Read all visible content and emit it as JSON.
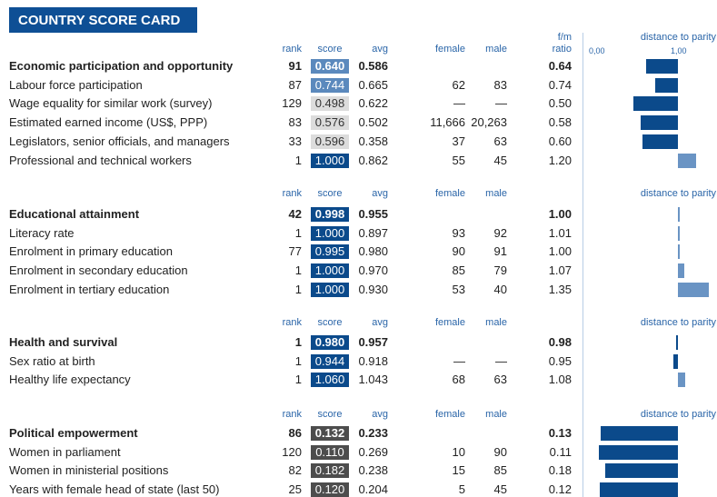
{
  "header": {
    "title": "COUNTRY SCORE CARD"
  },
  "columns": {
    "rank": "rank",
    "score": "score",
    "avg": "avg",
    "female": "female",
    "male": "male",
    "ratio": [
      "f/m",
      "ratio"
    ],
    "parity": "distance to parity",
    "axis": [
      {
        "value": 0,
        "label": "0,00"
      },
      {
        "value": 1,
        "label": "1,00"
      }
    ]
  },
  "colors": {
    "below": "#0b4a8b",
    "above": "#6a94c4"
  },
  "sections": [
    {
      "rows": [
        {
          "label": "Economic participation and opportunity",
          "rank": "91",
          "score": "0.640",
          "avg": "0.586",
          "female": null,
          "male": null,
          "ratio": "0.64",
          "score_color": "#5b89bd"
        },
        {
          "label": "Labour force participation",
          "rank": "87",
          "score": "0.744",
          "avg": "0.665",
          "female": "62",
          "male": "83",
          "ratio": "0.74",
          "score_color": "#5b89bd"
        },
        {
          "label": "Wage equality for similar work (survey)",
          "rank": "129",
          "score": "0.498",
          "avg": "0.622",
          "female": "—",
          "male": "—",
          "ratio": "0.50",
          "score_color": "#dcdcdc"
        },
        {
          "label": "Estimated earned income (US$, PPP)",
          "rank": "83",
          "score": "0.576",
          "avg": "0.502",
          "female": "11,666",
          "male": "20,263",
          "ratio": "0.58",
          "score_color": "#dcdcdc"
        },
        {
          "label": "Legislators, senior officials, and managers",
          "rank": "33",
          "score": "0.596",
          "avg": "0.358",
          "female": "37",
          "male": "63",
          "ratio": "0.60",
          "score_color": "#dcdcdc"
        },
        {
          "label": "Professional and technical workers",
          "rank": "1",
          "score": "1.000",
          "avg": "0.862",
          "female": "55",
          "male": "45",
          "ratio": "1.20",
          "score_color": "#0b4a8b"
        }
      ]
    },
    {
      "rows": [
        {
          "label": "Educational attainment",
          "rank": "42",
          "score": "0.998",
          "avg": "0.955",
          "female": null,
          "male": null,
          "ratio": "1.00",
          "score_color": "#0b4a8b"
        },
        {
          "label": "Literacy rate",
          "rank": "1",
          "score": "1.000",
          "avg": "0.897",
          "female": "93",
          "male": "92",
          "ratio": "1.01",
          "score_color": "#0b4a8b"
        },
        {
          "label": "Enrolment in primary education",
          "rank": "77",
          "score": "0.995",
          "avg": "0.980",
          "female": "90",
          "male": "91",
          "ratio": "1.00",
          "score_color": "#0b4a8b"
        },
        {
          "label": "Enrolment in secondary education",
          "rank": "1",
          "score": "1.000",
          "avg": "0.970",
          "female": "85",
          "male": "79",
          "ratio": "1.07",
          "score_color": "#0b4a8b"
        },
        {
          "label": "Enrolment in tertiary education",
          "rank": "1",
          "score": "1.000",
          "avg": "0.930",
          "female": "53",
          "male": "40",
          "ratio": "1.35",
          "score_color": "#0b4a8b"
        }
      ]
    },
    {
      "rows": [
        {
          "label": "Health and survival",
          "rank": "1",
          "score": "0.980",
          "avg": "0.957",
          "female": null,
          "male": null,
          "ratio": "0.98",
          "score_color": "#0b4a8b"
        },
        {
          "label": "Sex ratio at birth",
          "rank": "1",
          "score": "0.944",
          "avg": "0.918",
          "female": "—",
          "male": "—",
          "ratio": "0.95",
          "score_color": "#0b4a8b"
        },
        {
          "label": "Healthy life expectancy",
          "rank": "1",
          "score": "1.060",
          "avg": "1.043",
          "female": "68",
          "male": "63",
          "ratio": "1.08",
          "score_color": "#0b4a8b"
        }
      ]
    },
    {
      "rows": [
        {
          "label": "Political empowerment",
          "rank": "86",
          "score": "0.132",
          "avg": "0.233",
          "female": null,
          "male": null,
          "ratio": "0.13",
          "score_color": "#4d4d4d"
        },
        {
          "label": "Women in parliament",
          "rank": "120",
          "score": "0.110",
          "avg": "0.269",
          "female": "10",
          "male": "90",
          "ratio": "0.11",
          "score_color": "#4d4d4d"
        },
        {
          "label": "Women in ministerial positions",
          "rank": "82",
          "score": "0.182",
          "avg": "0.238",
          "female": "15",
          "male": "85",
          "ratio": "0.18",
          "score_color": "#4d4d4d"
        },
        {
          "label": "Years with female head of state (last 50)",
          "rank": "25",
          "score": "0.120",
          "avg": "0.204",
          "female": "5",
          "male": "45",
          "ratio": "0.12",
          "score_color": "#4d4d4d"
        }
      ]
    }
  ]
}
